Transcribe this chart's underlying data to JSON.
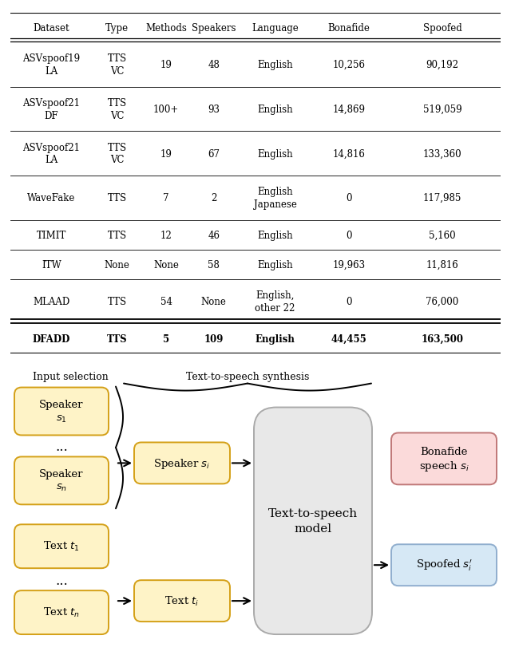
{
  "table_headers": [
    "Dataset",
    "Type",
    "Methods",
    "Speakers",
    "Language",
    "Bonafide",
    "Spoofed"
  ],
  "table_rows": [
    [
      "ASVspoof19\nLA",
      "TTS\nVC",
      "19",
      "48",
      "English",
      "10,256",
      "90,192"
    ],
    [
      "ASVspoof21\nDF",
      "TTS\nVC",
      "100+",
      "93",
      "English",
      "14,869",
      "519,059"
    ],
    [
      "ASVspoof21\nLA",
      "TTS\nVC",
      "19",
      "67",
      "English",
      "14,816",
      "133,360"
    ],
    [
      "WaveFake",
      "TTS",
      "7",
      "2",
      "English\nJapanese",
      "0",
      "117,985"
    ],
    [
      "TIMIT",
      "TTS",
      "12",
      "46",
      "English",
      "0",
      "5,160"
    ],
    [
      "ITW",
      "None",
      "None",
      "58",
      "English",
      "19,963",
      "11,816"
    ],
    [
      "MLAAD",
      "TTS",
      "54",
      "None",
      "English,\nother 22",
      "0",
      "76,000"
    ],
    [
      "DFADD",
      "TTS",
      "5",
      "109",
      "English",
      "44,455",
      "163,500"
    ]
  ],
  "bg_color": "#ffffff",
  "box_yellow_fill": "#FEF3C7",
  "box_yellow_edge": "#D4A017",
  "box_red_fill": "#FBDADA",
  "box_red_edge": "#C07878",
  "box_blue_fill": "#D6E8F5",
  "box_blue_edge": "#90AECE",
  "box_tts_fill": "#E8E8E8",
  "box_tts_edge": "#AAAAAA",
  "label_input": "Input selection",
  "label_tts_title": "Text-to-speech synthesis",
  "label_tts_model": "Text-to-speech\nmodel"
}
